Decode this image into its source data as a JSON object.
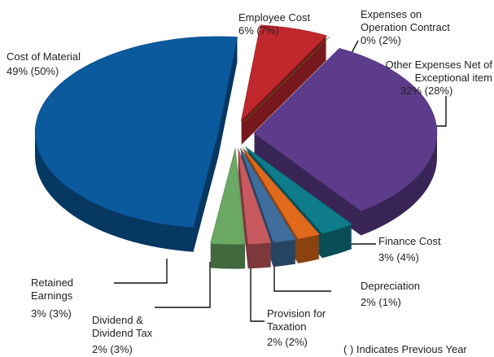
{
  "chart_data": {
    "type": "pie",
    "categories": [
      "Employee Cost",
      "Expenses on Operation Contract",
      "Other Expenses Net of Exceptional item",
      "Finance Cost",
      "Depreciation",
      "Provision for Taxation",
      "Dividend & Dividend Tax",
      "Retained Earnings",
      "Cost of Material"
    ],
    "values": [
      6,
      0,
      32,
      3,
      2,
      2,
      2,
      3,
      49
    ],
    "value_labels": [
      "6% (7%)",
      "0% (2%)",
      "32% (28%)",
      "3% (4%)",
      "2% (1%)",
      "2% (2%)",
      "2% (3%)",
      "3% (3%)",
      "49% (50%)"
    ],
    "colors": [
      "#c0282d",
      "#4a8a2a",
      "#5e3c8c",
      "#0e7c8a",
      "#e06a1c",
      "#3f6e9e",
      "#c85a5f",
      "#6aa863",
      "#0c5a9e"
    ],
    "note": "( ) Indicates Previous Year"
  }
}
